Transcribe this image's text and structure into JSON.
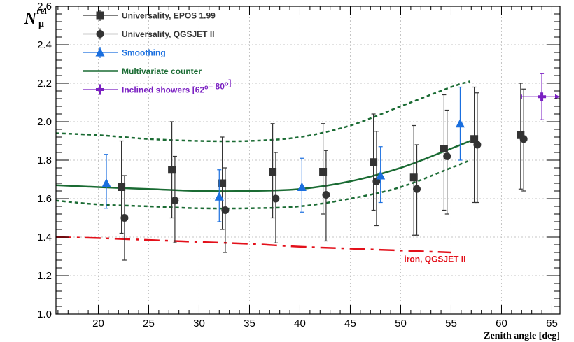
{
  "chart_data": {
    "type": "scatter",
    "xlabel": "Zenith angle [deg]",
    "ylabel": {
      "main": "N",
      "sup": "rel",
      "sub": "μ"
    },
    "xlim": [
      15.8,
      65.8
    ],
    "ylim": [
      1.0,
      2.6
    ],
    "x_ticks": [
      20,
      25,
      30,
      35,
      40,
      45,
      50,
      55,
      60,
      65
    ],
    "y_ticks": [
      1.0,
      1.2,
      1.4,
      1.6,
      1.8,
      2.0,
      2.2,
      2.4,
      2.6
    ],
    "y_tick_labels": [
      "1.0",
      "1.2",
      "1.4",
      "1.6",
      "1.8",
      "2.0",
      "2.2",
      "2.4",
      "2.6"
    ],
    "grid": true,
    "legend_position": "top-left",
    "colors": {
      "epos": "#333333",
      "qgsjet": "#333333",
      "smoothing": "#1a6fdf",
      "multivariate": "#1a6b33",
      "inclined": "#7a1fc2",
      "iron": "#e3101a"
    },
    "series": [
      {
        "name": "Universality, EPOS 1.99",
        "marker": "square",
        "x": [
          22.3,
          27.3,
          32.3,
          37.3,
          42.3,
          47.3,
          51.3,
          54.3,
          57.3,
          61.9
        ],
        "y": [
          1.66,
          1.75,
          1.68,
          1.74,
          1.74,
          1.79,
          1.71,
          1.86,
          1.91,
          1.93
        ],
        "err_low": [
          0.24,
          0.25,
          0.24,
          0.24,
          0.22,
          0.25,
          0.3,
          0.32,
          0.33,
          0.28
        ],
        "err_high": [
          0.24,
          0.25,
          0.24,
          0.25,
          0.25,
          0.25,
          0.27,
          0.28,
          0.27,
          0.27
        ]
      },
      {
        "name": "Universality, QGSJET II",
        "marker": "circle",
        "x": [
          22.6,
          27.6,
          32.6,
          37.6,
          42.6,
          47.6,
          51.6,
          54.6,
          57.6,
          62.2
        ],
        "y": [
          1.5,
          1.59,
          1.54,
          1.6,
          1.62,
          1.69,
          1.65,
          1.82,
          1.88,
          1.91
        ],
        "err_low": [
          0.22,
          0.22,
          0.22,
          0.23,
          0.24,
          0.23,
          0.24,
          0.3,
          0.3,
          0.27
        ],
        "err_high": [
          0.22,
          0.23,
          0.22,
          0.24,
          0.23,
          0.26,
          0.23,
          0.24,
          0.27,
          0.26
        ]
      },
      {
        "name": "Smoothing",
        "marker": "triangle",
        "x": [
          20.8,
          32.0,
          40.2,
          48.0,
          55.9
        ],
        "y": [
          1.68,
          1.61,
          1.66,
          1.72,
          1.99
        ],
        "err_low": [
          0.13,
          0.13,
          0.13,
          0.14,
          0.19
        ],
        "err_high": [
          0.15,
          0.14,
          0.15,
          0.15,
          0.19
        ]
      },
      {
        "name": "Multivariate counter",
        "type": "line",
        "style": "solid",
        "x": [
          15.8,
          20,
          25,
          30,
          35,
          40,
          45,
          50,
          55,
          56.9
        ],
        "y": [
          1.67,
          1.66,
          1.65,
          1.64,
          1.64,
          1.65,
          1.69,
          1.76,
          1.86,
          1.9
        ]
      },
      {
        "name": "",
        "type": "line",
        "style": "dashed",
        "x": [
          15.8,
          20,
          25,
          30,
          35,
          40,
          45,
          50,
          55,
          56.9
        ],
        "y": [
          1.94,
          1.93,
          1.91,
          1.9,
          1.9,
          1.92,
          1.98,
          2.08,
          2.18,
          2.21
        ]
      },
      {
        "name": "",
        "type": "line",
        "style": "dashed",
        "x": [
          15.8,
          20,
          25,
          30,
          35,
          40,
          45,
          50,
          55,
          56.9
        ],
        "y": [
          1.59,
          1.57,
          1.56,
          1.55,
          1.55,
          1.56,
          1.6,
          1.66,
          1.76,
          1.8
        ]
      },
      {
        "name": "Inclined showers [62°–80°]",
        "marker": "cross",
        "x": [
          64
        ],
        "y": [
          2.13
        ],
        "x_low": [
          62
        ],
        "x_high": [
          65.8
        ],
        "err_low": [
          0.12
        ],
        "err_high": [
          0.12
        ]
      },
      {
        "name": "iron, QGSJET II",
        "type": "line",
        "style": "dashdot",
        "x": [
          15.8,
          20,
          25,
          30,
          35,
          40,
          45,
          50,
          55
        ],
        "y": [
          1.4,
          1.395,
          1.385,
          1.375,
          1.365,
          1.35,
          1.34,
          1.33,
          1.32
        ]
      }
    ],
    "legend": [
      {
        "label": "Universality, EPOS 1.99",
        "series": 0
      },
      {
        "label": "Universality, QGSJET II",
        "series": 1
      },
      {
        "label": "Smoothing",
        "series": 2
      },
      {
        "label": "Multivariate counter",
        "series": 3
      },
      {
        "label": "Inclined showers [62",
        "label_sup1": "o",
        "label_mid": "– 80",
        "label_sup2": "o",
        "label_end": "]",
        "series": 6
      }
    ],
    "annotations": [
      {
        "text": "iron, QGSJET II",
        "x": 53.4,
        "y": 1.285
      }
    ]
  }
}
